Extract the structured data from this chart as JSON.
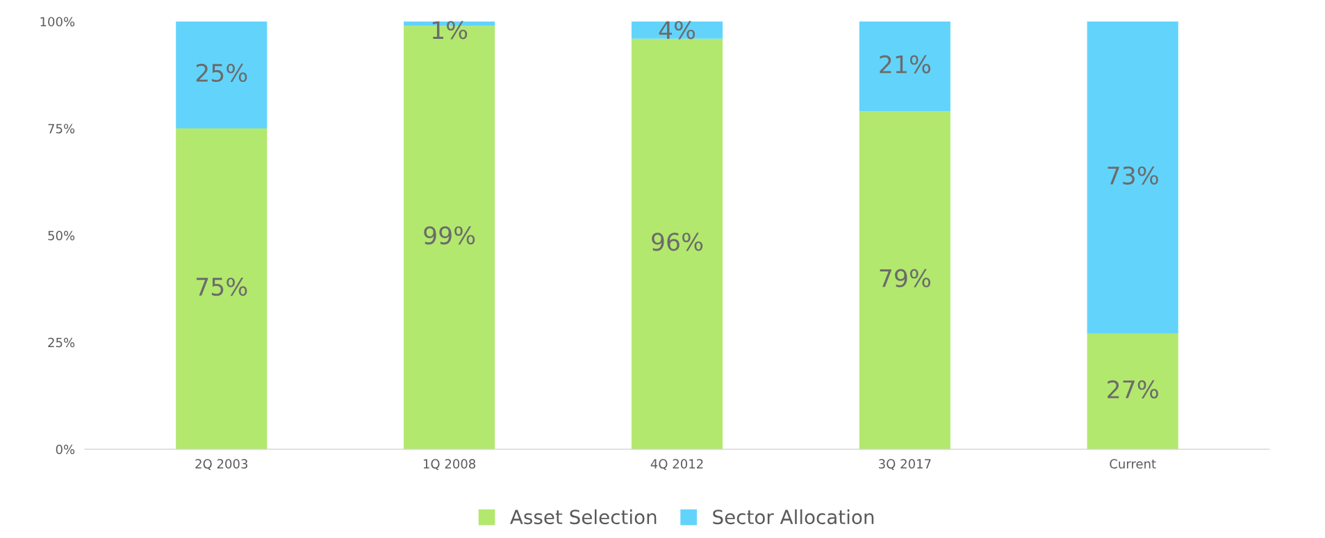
{
  "chart_data": {
    "type": "bar",
    "stacked": true,
    "categories": [
      "2Q 2003",
      "1Q 2008",
      "4Q 2012",
      "3Q 2017",
      "Current"
    ],
    "series": [
      {
        "name": "Asset Selection",
        "color": "#b3e86e",
        "values": [
          75,
          99,
          96,
          79,
          27
        ],
        "value_labels": [
          "75%",
          "99%",
          "96%",
          "79%",
          "27%"
        ]
      },
      {
        "name": "Sector Allocation",
        "color": "#62d4fb",
        "values": [
          25,
          1,
          4,
          21,
          73
        ],
        "value_labels": [
          "25%",
          "1%",
          "4%",
          "21%",
          "73%"
        ]
      }
    ],
    "ylim": [
      0,
      100
    ],
    "yticks": [
      {
        "value": 0,
        "label": "0%"
      },
      {
        "value": 25,
        "label": "25%"
      },
      {
        "value": 50,
        "label": "50%"
      },
      {
        "value": 75,
        "label": "75%"
      },
      {
        "value": 100,
        "label": "100%"
      }
    ],
    "grid": false,
    "legend": "bottom"
  }
}
